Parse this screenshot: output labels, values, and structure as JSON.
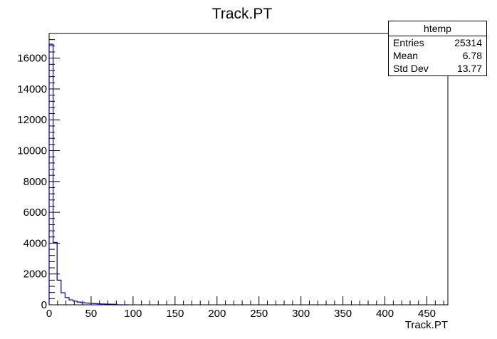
{
  "chart_data": {
    "type": "bar",
    "title": "Track.PT",
    "xlabel": "Track.PT",
    "ylabel": "",
    "xlim": [
      0,
      475
    ],
    "ylim": [
      0,
      17600
    ],
    "x_ticks": [
      0,
      50,
      100,
      150,
      200,
      250,
      300,
      350,
      400,
      450
    ],
    "y_ticks": [
      0,
      2000,
      4000,
      6000,
      8000,
      10000,
      12000,
      14000,
      16000
    ],
    "bin_width": 4.75,
    "bin_edges_start": 0,
    "values": [
      16900,
      4050,
      1600,
      780,
      470,
      320,
      240,
      180,
      140,
      115,
      95,
      80,
      65,
      55,
      48,
      42,
      36,
      0,
      0,
      0
    ],
    "line_color": "#00008b",
    "grid": false,
    "legend": "none"
  },
  "stats": {
    "title": "htemp",
    "rows": [
      {
        "label": "Entries",
        "value": "25314"
      },
      {
        "label": "Mean",
        "value": "6.78"
      },
      {
        "label": "Std Dev",
        "value": "13.77"
      }
    ]
  }
}
